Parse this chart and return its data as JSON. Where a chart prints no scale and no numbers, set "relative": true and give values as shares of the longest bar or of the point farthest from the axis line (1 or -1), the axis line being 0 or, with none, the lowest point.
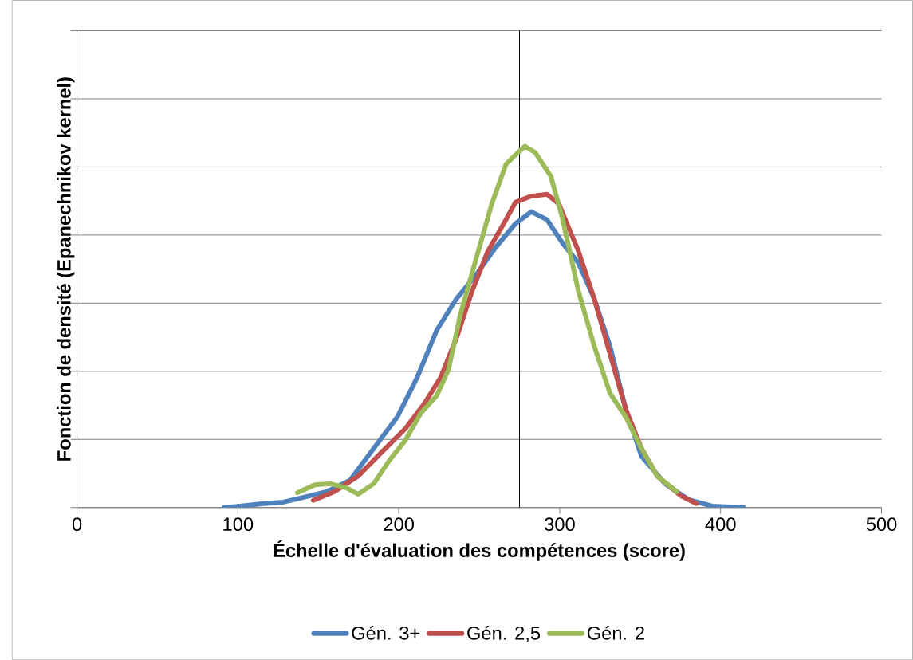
{
  "chart_data": {
    "type": "line",
    "relative": true,
    "xlabel": "Échelle d'évaluation des compétences (score)",
    "ylabel": "Fonction de densité (Epanechnikov kernel)",
    "xlim": [
      0,
      500
    ],
    "xticks": [
      0,
      100,
      200,
      300,
      400,
      500
    ],
    "grid": "y",
    "legend": "bottom",
    "marker": "none",
    "line_style": "solid",
    "tick_labels": "x",
    "ref_lines": [
      {
        "axis": "x",
        "value": 275,
        "color": "#000000"
      }
    ],
    "series": [
      {
        "name": "Gén. 3+",
        "color": "#4f81bd",
        "x": [
          91.5,
          101.3,
          116,
          128.2,
          140.4,
          155.1,
          169.8,
          184.4,
          199.1,
          211.4,
          223.6,
          235.8,
          248,
          260.3,
          272.5,
          282.3,
          292.1,
          301.9,
          311.6,
          321.4,
          331.2,
          341,
          350.8,
          365.5,
          380.1,
          394.8,
          414.4
        ],
        "values": [
          0,
          0.004,
          0.011,
          0.015,
          0.028,
          0.044,
          0.076,
          0.164,
          0.251,
          0.36,
          0.491,
          0.578,
          0.644,
          0.721,
          0.786,
          0.819,
          0.797,
          0.731,
          0.677,
          0.579,
          0.448,
          0.273,
          0.142,
          0.066,
          0.022,
          0.004,
          0
        ]
      },
      {
        "name": "Gén. 2,5",
        "color": "#c0504d",
        "x": [
          146.8,
          160,
          174.7,
          189.3,
          204,
          216.2,
          226,
          235.8,
          245.6,
          255.4,
          265.2,
          272.5,
          282.3,
          292.1,
          299.4,
          311.6,
          321.4,
          331.2,
          341,
          350.8,
          360.6,
          375.2,
          385
        ],
        "values": [
          0.02,
          0.044,
          0.087,
          0.153,
          0.218,
          0.29,
          0.36,
          0.469,
          0.6,
          0.71,
          0.786,
          0.845,
          0.862,
          0.867,
          0.841,
          0.71,
          0.579,
          0.426,
          0.273,
          0.164,
          0.087,
          0.033,
          0.011
        ]
      },
      {
        "name": "Gén. 2",
        "color": "#9bbb59",
        "x": [
          137,
          147.7,
          157.5,
          167.3,
          174.7,
          184.4,
          194.2,
          204,
          213.8,
          223.6,
          230.9,
          238.3,
          248,
          257.8,
          266.6,
          272.5,
          278.4,
          284.7,
          294.5,
          301.9,
          311.6,
          321.4,
          331.2,
          341,
          350.8,
          360.6,
          372.8
        ],
        "values": [
          0.041,
          0.063,
          0.066,
          0.055,
          0.037,
          0.066,
          0.131,
          0.186,
          0.262,
          0.31,
          0.382,
          0.535,
          0.688,
          0.841,
          0.95,
          0.976,
          1.0,
          0.983,
          0.917,
          0.797,
          0.6,
          0.448,
          0.317,
          0.251,
          0.164,
          0.087,
          0.044
        ]
      }
    ]
  }
}
